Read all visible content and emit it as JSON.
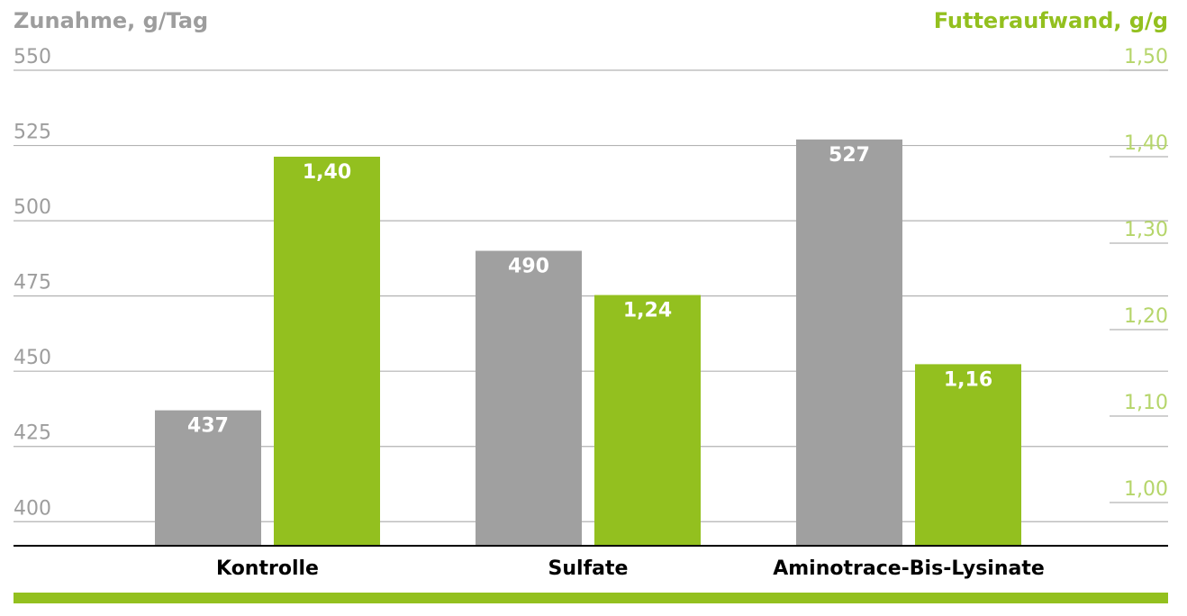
{
  "chart_data": {
    "type": "bar",
    "y_label": "Zunahme, g/Tag",
    "y2_label": "Futteraufwand, g/g",
    "categories": [
      "Kontrolle",
      "Sulfate",
      "Aminotrace-Bis-Lysinate"
    ],
    "series": [
      {
        "color": "#a0a0a0",
        "values": [
          437,
          490,
          527
        ]
      },
      {
        "color": "#93c01f",
        "axis": "y2",
        "values": [
          1.4,
          1.24,
          1.16
        ],
        "value_labels": [
          "1,40",
          "1,24",
          "1,16"
        ]
      }
    ],
    "ylim": [
      392,
      550
    ],
    "yticks": [
      400,
      425,
      450,
      475,
      500,
      525,
      550
    ],
    "y2lim": [
      0.95,
      1.5
    ],
    "y2ticks": [
      {
        "value": 1.0,
        "label": "1,00"
      },
      {
        "value": 1.1,
        "label": "1,10"
      },
      {
        "value": 1.2,
        "label": "1,20"
      },
      {
        "value": 1.3,
        "label": "1,30"
      },
      {
        "value": 1.4,
        "label": "1,40"
      },
      {
        "value": 1.5,
        "label": "1,50"
      }
    ],
    "grid": true
  }
}
